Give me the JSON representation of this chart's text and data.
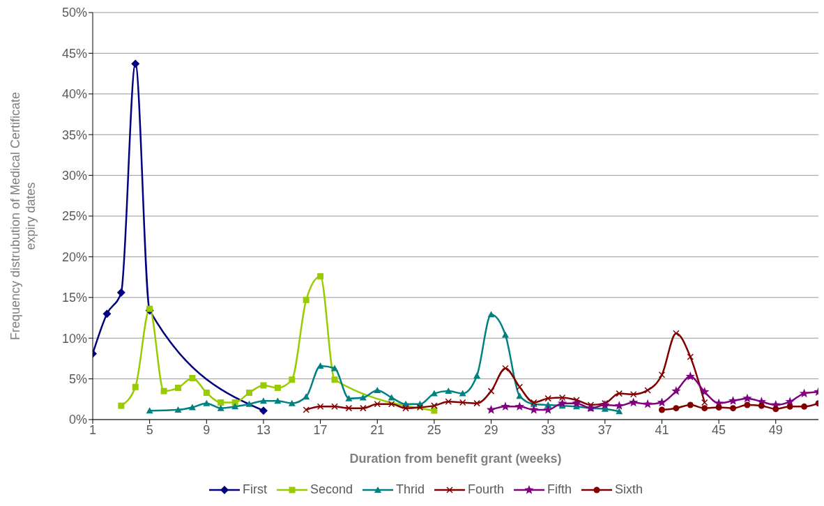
{
  "chart_data": {
    "type": "line",
    "xlabel": "Duration from benefit grant (weeks)",
    "ylabel": "Frequency distrubution of Medical Certificate expiry dates",
    "xlim": [
      1,
      52
    ],
    "xticks": [
      1,
      5,
      9,
      13,
      17,
      21,
      25,
      29,
      33,
      37,
      41,
      45,
      49
    ],
    "ylim": [
      0,
      50
    ],
    "yticks": [
      {
        "value": 0,
        "label": "0%"
      },
      {
        "value": 5,
        "label": "5%"
      },
      {
        "value": 10,
        "label": "10%"
      },
      {
        "value": 15,
        "label": "15%"
      },
      {
        "value": 20,
        "label": "20%"
      },
      {
        "value": 25,
        "label": "25%"
      },
      {
        "value": 30,
        "label": "30%"
      },
      {
        "value": 35,
        "label": "35%"
      },
      {
        "value": 40,
        "label": "40%"
      },
      {
        "value": 45,
        "label": "45%"
      },
      {
        "value": 50,
        "label": "50%"
      }
    ],
    "grid": "y",
    "legend": "bottom",
    "line_style": "solid",
    "series": [
      {
        "name": "First",
        "color": "#000080",
        "marker": "diamond",
        "x": [
          1,
          2,
          3,
          4,
          5,
          13
        ],
        "values": [
          8.1,
          13.0,
          15.6,
          43.7,
          13.4,
          1.1
        ]
      },
      {
        "name": "Second",
        "color": "#99cc00",
        "marker": "square",
        "x": [
          3,
          4,
          5,
          6,
          7,
          8,
          9,
          10,
          11,
          12,
          13,
          14,
          15,
          16,
          17,
          18,
          25
        ],
        "values": [
          1.7,
          4.0,
          13.6,
          3.5,
          3.9,
          5.1,
          3.3,
          2.1,
          2.1,
          3.3,
          4.2,
          3.9,
          4.9,
          14.7,
          17.6,
          4.9,
          1.1
        ]
      },
      {
        "name": "Thrid",
        "color": "#008080",
        "marker": "triangle",
        "x": [
          5,
          7,
          8,
          9,
          10,
          11,
          12,
          13,
          14,
          15,
          16,
          17,
          18,
          19,
          20,
          21,
          22,
          23,
          24,
          25,
          26,
          27,
          28,
          29,
          30,
          31,
          32,
          33,
          34,
          35,
          36,
          37,
          38
        ],
        "values": [
          1.1,
          1.2,
          1.5,
          2.0,
          1.4,
          1.6,
          1.9,
          2.3,
          2.3,
          2.0,
          2.8,
          6.6,
          6.3,
          2.6,
          2.7,
          3.6,
          2.7,
          1.9,
          1.9,
          3.2,
          3.5,
          3.2,
          5.4,
          12.9,
          10.4,
          2.9,
          1.9,
          1.8,
          1.7,
          1.6,
          1.4,
          1.3,
          1.0
        ]
      },
      {
        "name": "Fourth",
        "color": "#800000",
        "marker": "cross",
        "x": [
          16,
          17,
          18,
          19,
          20,
          21,
          22,
          23,
          24,
          25,
          26,
          27,
          28,
          29,
          30,
          31,
          32,
          33,
          34,
          35,
          36,
          37,
          38,
          39,
          40,
          41,
          42,
          43,
          44
        ],
        "values": [
          1.2,
          1.6,
          1.6,
          1.4,
          1.4,
          1.9,
          1.9,
          1.4,
          1.5,
          1.7,
          2.2,
          2.1,
          2.0,
          3.5,
          6.3,
          4.0,
          2.1,
          2.6,
          2.7,
          2.4,
          1.8,
          2.0,
          3.2,
          3.1,
          3.6,
          5.5,
          10.6,
          7.7,
          2.1
        ]
      },
      {
        "name": "Fifth",
        "color": "#800080",
        "marker": "star",
        "x": [
          29,
          30,
          31,
          32,
          33,
          34,
          35,
          36,
          37,
          38,
          39,
          40,
          41,
          42,
          43,
          44,
          45,
          46,
          47,
          48,
          49,
          50,
          51,
          52
        ],
        "values": [
          1.2,
          1.6,
          1.6,
          1.2,
          1.2,
          2.0,
          2.0,
          1.4,
          1.8,
          1.7,
          2.1,
          1.9,
          2.1,
          3.5,
          5.3,
          3.4,
          2.0,
          2.3,
          2.6,
          2.2,
          1.8,
          2.2,
          3.2,
          3.4
        ]
      },
      {
        "name": "Sixth",
        "color": "#800000",
        "marker": "circle",
        "x": [
          41,
          42,
          43,
          44,
          45,
          46,
          47,
          48,
          49,
          50,
          51,
          52
        ],
        "values": [
          1.2,
          1.4,
          1.8,
          1.4,
          1.5,
          1.4,
          1.8,
          1.7,
          1.3,
          1.6,
          1.6,
          2.0
        ]
      }
    ]
  }
}
